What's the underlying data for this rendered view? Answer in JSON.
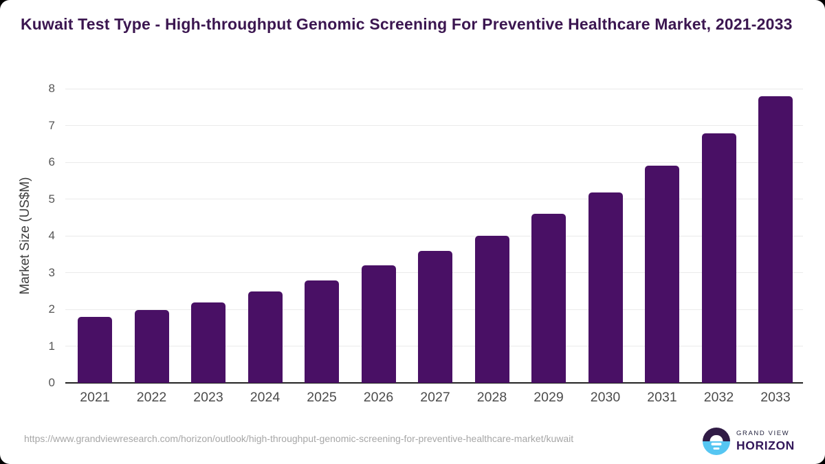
{
  "chart_data": {
    "type": "bar",
    "title": "Kuwait Test Type - High-throughput Genomic Screening For Preventive Healthcare Market, 2021-2033",
    "categories": [
      "2021",
      "2022",
      "2023",
      "2024",
      "2025",
      "2026",
      "2027",
      "2028",
      "2029",
      "2030",
      "2031",
      "2032",
      "2033"
    ],
    "values": [
      1.8,
      1.98,
      2.18,
      2.48,
      2.78,
      3.2,
      3.58,
      4.0,
      4.6,
      5.18,
      5.9,
      6.78,
      7.8
    ],
    "xlabel": "",
    "ylabel": "Market Size (US$M)",
    "ylim": [
      0,
      8
    ],
    "yticks": [
      0,
      1,
      2,
      3,
      4,
      5,
      6,
      7,
      8
    ],
    "grid": true,
    "legend": false,
    "bar_color": "#491065"
  },
  "footer": {
    "url": "https://www.grandviewresearch.com/horizon/outlook/high-throughput-genomic-screening-for-preventive-healthcare-market/kuwait",
    "logo": {
      "brand": "GRAND VIEW",
      "product": "HORIZON"
    }
  },
  "colors": {
    "card_bg": "#ffffff",
    "title_text": "#3b1650",
    "bar": "#491065",
    "grid_line": "#eaeaea",
    "axis_line": "#222222",
    "tick_text": "#555555",
    "tick_text2": "#4b4b4b",
    "axis_label_text": "#3d3d3d",
    "url_text": "#a6a6a6",
    "logo_purple": "#301b45",
    "logo_blue": "#56c6f2",
    "logo_navy": "#23233f",
    "logo_purple_text": "#33175a"
  }
}
